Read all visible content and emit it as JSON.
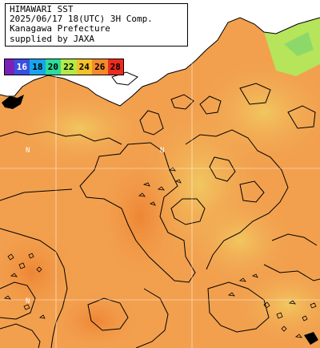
{
  "title_lines": [
    "HIMAWARI SST",
    "2025/06/17 18(UTC) 3H Comp.",
    "Kanagawa Prefecture",
    "supplied by JAXA"
  ],
  "legend": {
    "items": [
      {
        "label": "",
        "color": "#7a22b8"
      },
      {
        "label": "16",
        "color": "#3a4fe0"
      },
      {
        "label": "18",
        "color": "#16a6ec"
      },
      {
        "label": "20",
        "color": "#2bdc9a"
      },
      {
        "label": "22",
        "color": "#b2ea45"
      },
      {
        "label": "24",
        "color": "#f3c128"
      },
      {
        "label": "26",
        "color": "#f58a2a"
      },
      {
        "label": "28",
        "color": "#ee2a1e"
      }
    ]
  },
  "colors": {
    "sea_warm": "#f2a04e",
    "sea_warmer": "#ef8a38",
    "sea_mild": "#f0c25a",
    "land": "#ffffff",
    "contour": "#000000",
    "grid": "#ffffff"
  },
  "markers": [
    {
      "label": "N"
    },
    {
      "label": "N"
    },
    {
      "label": "N"
    }
  ]
}
